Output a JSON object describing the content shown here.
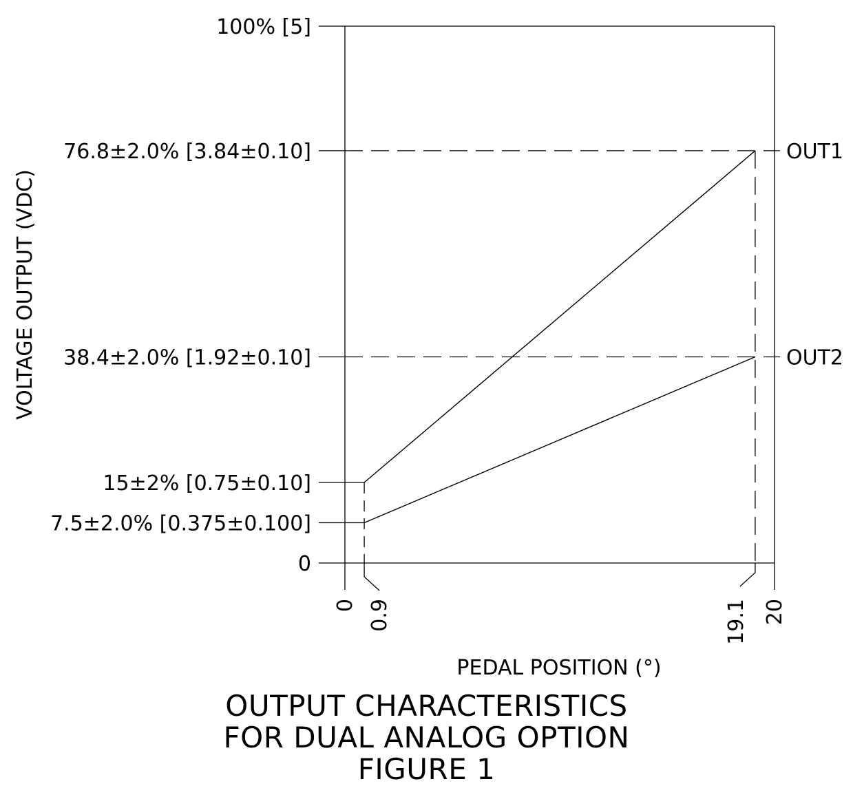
{
  "chart_data": {
    "type": "line",
    "xlabel": "PEDAL POSITION (°)",
    "ylabel": "VOLTAGE OUTPUT (VDC)",
    "xlim": [
      0,
      20
    ],
    "ylim": [
      0,
      100
    ],
    "x_ticks": [
      {
        "value": 0,
        "label": "0"
      },
      {
        "value": 0.9,
        "label": "0.9"
      },
      {
        "value": 19.1,
        "label": "19.1"
      },
      {
        "value": 20,
        "label": "20"
      }
    ],
    "y_ticks": [
      {
        "value": 0,
        "label": "0"
      },
      {
        "value": 7.5,
        "label": "7.5±2.0% [0.375±0.100]"
      },
      {
        "value": 15,
        "label": "15±2% [0.75±0.10]"
      },
      {
        "value": 38.4,
        "label": "38.4±2.0% [1.92±0.10]"
      },
      {
        "value": 76.8,
        "label": "76.8±2.0% [3.84±0.10]"
      },
      {
        "value": 100,
        "label": "100% [5]"
      }
    ],
    "series": [
      {
        "name": "OUT1",
        "x": [
          0.9,
          19.1
        ],
        "y": [
          15,
          76.8
        ]
      },
      {
        "name": "OUT2",
        "x": [
          0.9,
          19.1
        ],
        "y": [
          7.5,
          38.4
        ]
      }
    ],
    "title_lines": [
      "OUTPUT CHARACTERISTICS",
      "FOR DUAL ANALOG OPTION",
      "FIGURE 1"
    ],
    "grid": false,
    "legend": "right, at line ends",
    "line_color": "#000000"
  }
}
